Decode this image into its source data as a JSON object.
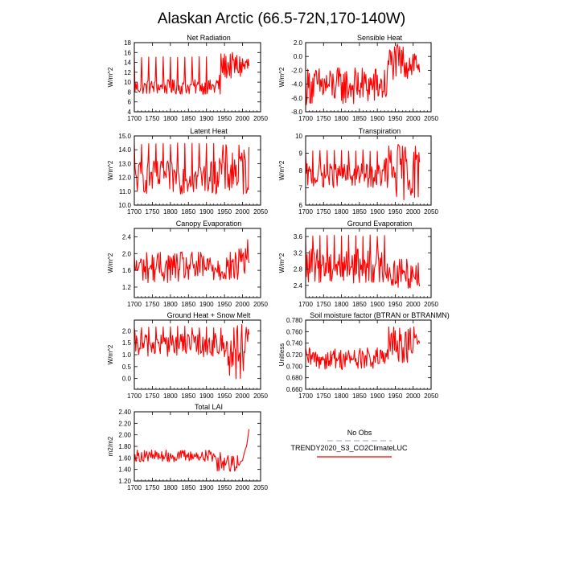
{
  "page": {
    "title": "Alaskan Arctic (66.5-72N,170-140W)"
  },
  "legend": {
    "entries": [
      {
        "label": "No Obs",
        "color": "#b0b0c8",
        "dash": true
      },
      {
        "label": "TRENDY2020_S3_CO2ClimateLUC",
        "color": "#ff0000",
        "dash": false
      }
    ]
  },
  "colors": {
    "series": "#ff0000",
    "frame": "#000000"
  },
  "chart_data": [
    {
      "type": "line",
      "title": "Net Radiation",
      "ylabel": "W/m^2",
      "xlim": [
        1700,
        2050
      ],
      "xticks": [
        1700,
        1750,
        1800,
        1850,
        1900,
        1950,
        2000,
        2050
      ],
      "ylim": [
        4,
        18
      ],
      "yticks": [
        4,
        6,
        8,
        10,
        12,
        14,
        16,
        18
      ],
      "yticklabels": [
        "4",
        "6",
        "8",
        "10",
        "12",
        "14",
        "16",
        "18"
      ],
      "series": [
        {
          "x_start": 1700,
          "x_end": 2020,
          "segments": [
            {
              "x0": 1700,
              "x1": 1920,
              "type": "periodic",
              "period": 20,
              "spikes": true,
              "base": [
                7.5,
                10.5
              ],
              "peak": 15.2,
              "trough": 6.8
            },
            {
              "x0": 1920,
              "x1": 1940,
              "type": "noise",
              "range": [
                6.5,
                12
              ]
            },
            {
              "x0": 1940,
              "x1": 2020,
              "type": "noise",
              "range": [
                10.5,
                16
              ]
            }
          ]
        }
      ]
    },
    {
      "type": "line",
      "title": "Sensible Heat",
      "ylabel": "W/m^2",
      "xlim": [
        1700,
        2050
      ],
      "xticks": [
        1700,
        1750,
        1800,
        1850,
        1900,
        1950,
        2000,
        2050
      ],
      "ylim": [
        -8,
        2
      ],
      "yticks": [
        -8,
        -6,
        -4,
        -2,
        0,
        2
      ],
      "yticklabels": [
        "-8.0",
        "-6.0",
        "-4.0",
        "-2.0",
        "0.0",
        "2.0"
      ],
      "series": [
        {
          "x_start": 1700,
          "x_end": 2020,
          "segments": [
            {
              "x0": 1700,
              "x1": 1930,
              "type": "noise",
              "range": [
                -7.0,
                -1.5
              ]
            },
            {
              "x0": 1930,
              "x1": 2020,
              "type": "noise",
              "range": [
                -3.5,
                1.8
              ]
            }
          ]
        }
      ]
    },
    {
      "type": "line",
      "title": "Latent Heat",
      "ylabel": "W/m^2",
      "xlim": [
        1700,
        2050
      ],
      "xticks": [
        1700,
        1750,
        1800,
        1850,
        1900,
        1950,
        2000,
        2050
      ],
      "ylim": [
        10,
        15
      ],
      "yticks": [
        10,
        11,
        12,
        13,
        14,
        15
      ],
      "yticklabels": [
        "10.0",
        "11.0",
        "12.0",
        "13.0",
        "14.0",
        "15.0"
      ],
      "series": [
        {
          "x_start": 1700,
          "x_end": 2020,
          "segments": [
            {
              "x0": 1700,
              "x1": 1930,
              "type": "periodic",
              "period": 20,
              "spikes": true,
              "base": [
                10.8,
                13.2
              ],
              "peak": 14.5,
              "trough": 10.5
            },
            {
              "x0": 1930,
              "x1": 2020,
              "type": "noise",
              "range": [
                10.6,
                14.4
              ]
            }
          ]
        }
      ]
    },
    {
      "type": "line",
      "title": "Transpiration",
      "ylabel": "W/m^2",
      "xlim": [
        1700,
        2050
      ],
      "xticks": [
        1700,
        1750,
        1800,
        1850,
        1900,
        1950,
        2000,
        2050
      ],
      "ylim": [
        6,
        10
      ],
      "yticks": [
        6,
        7,
        8,
        9,
        10
      ],
      "yticklabels": [
        "6",
        "7",
        "8",
        "9",
        "10"
      ],
      "series": [
        {
          "x_start": 1700,
          "x_end": 2020,
          "segments": [
            {
              "x0": 1700,
              "x1": 1920,
              "type": "periodic",
              "period": 20,
              "spikes": true,
              "base": [
                7.0,
                8.4
              ],
              "peak": 9.2,
              "trough": 6.8
            },
            {
              "x0": 1920,
              "x1": 2020,
              "type": "noise",
              "range": [
                6.3,
                9.6
              ]
            }
          ]
        }
      ]
    },
    {
      "type": "line",
      "title": "Canopy Evaporation",
      "ylabel": "W/m^2",
      "xlim": [
        1700,
        2050
      ],
      "xticks": [
        1700,
        1750,
        1800,
        1850,
        1900,
        1950,
        2000,
        2050
      ],
      "ylim": [
        0.95,
        2.6
      ],
      "yticks": [
        1.2,
        1.6,
        2.0,
        2.4
      ],
      "yticklabels": [
        "1.2",
        "1.6",
        "2.0",
        "2.4"
      ],
      "series": [
        {
          "x_start": 1700,
          "x_end": 2020,
          "segments": [
            {
              "x0": 1700,
              "x1": 1990,
              "type": "noise",
              "range": [
                1.3,
                2.05
              ]
            },
            {
              "x0": 1990,
              "x1": 2020,
              "type": "noise",
              "range": [
                1.4,
                2.4
              ]
            }
          ]
        }
      ]
    },
    {
      "type": "line",
      "title": "Ground Evaporation",
      "ylabel": "W/m^2",
      "xlim": [
        1700,
        2050
      ],
      "xticks": [
        1700,
        1750,
        1800,
        1850,
        1900,
        1950,
        2000,
        2050
      ],
      "ylim": [
        2.1,
        3.8
      ],
      "yticks": [
        2.4,
        2.8,
        3.2,
        3.6
      ],
      "yticklabels": [
        "2.4",
        "2.8",
        "3.2",
        "3.6"
      ],
      "series": [
        {
          "x_start": 1700,
          "x_end": 2020,
          "segments": [
            {
              "x0": 1700,
              "x1": 1930,
              "type": "periodic",
              "period": 20,
              "spikes": true,
              "base": [
                2.45,
                3.3
              ],
              "peak": 3.65,
              "trough": 2.4
            },
            {
              "x0": 1930,
              "x1": 2020,
              "type": "noise",
              "range": [
                2.3,
                3.1
              ]
            }
          ]
        }
      ]
    },
    {
      "type": "line",
      "title": "Ground Heat + Snow Melt",
      "ylabel": "W/m^2",
      "xlim": [
        1700,
        2050
      ],
      "xticks": [
        1700,
        1750,
        1800,
        1850,
        1900,
        1950,
        2000,
        2050
      ],
      "ylim": [
        -0.45,
        2.45
      ],
      "yticks": [
        0,
        0.5,
        1.0,
        1.5,
        2.0
      ],
      "yticklabels": [
        "0.0",
        "0.5",
        "1.0",
        "1.5",
        "2.0"
      ],
      "series": [
        {
          "x_start": 1700,
          "x_end": 2020,
          "segments": [
            {
              "x0": 1700,
              "x1": 1960,
              "type": "periodic",
              "period": 20,
              "spikes": true,
              "base": [
                0.9,
                1.9
              ],
              "peak": 2.2,
              "trough": 0.0
            },
            {
              "x0": 1960,
              "x1": 2020,
              "type": "noise",
              "range": [
                -0.1,
                2.3
              ]
            }
          ]
        }
      ]
    },
    {
      "type": "line",
      "title": "Soil moisture factor (BTRAN or BTRANMN)",
      "ylabel": "Unitless",
      "xlim": [
        1700,
        2050
      ],
      "xticks": [
        1700,
        1750,
        1800,
        1850,
        1900,
        1950,
        2000,
        2050
      ],
      "ylim": [
        0.66,
        0.78
      ],
      "yticks": [
        0.66,
        0.68,
        0.7,
        0.72,
        0.74,
        0.76,
        0.78
      ],
      "yticklabels": [
        "0.660",
        "0.680",
        "0.700",
        "0.720",
        "0.740",
        "0.760",
        "0.780"
      ],
      "series": [
        {
          "x_start": 1700,
          "x_end": 2020,
          "segments": [
            {
              "x0": 1700,
              "x1": 1930,
              "type": "noise",
              "range": [
                0.694,
                0.732
              ]
            },
            {
              "x0": 1930,
              "x1": 2020,
              "type": "noise",
              "range": [
                0.705,
                0.771
              ]
            }
          ]
        }
      ]
    },
    {
      "type": "line",
      "title": "Total LAI",
      "ylabel": "m2/m2",
      "xlim": [
        1700,
        2050
      ],
      "xticks": [
        1700,
        1750,
        1800,
        1850,
        1900,
        1950,
        2000,
        2050
      ],
      "ylim": [
        1.2,
        2.4
      ],
      "yticks": [
        1.2,
        1.4,
        1.6,
        1.8,
        2.0,
        2.2,
        2.4
      ],
      "yticklabels": [
        "1.20",
        "1.40",
        "1.60",
        "1.80",
        "2.00",
        "2.20",
        "2.40"
      ],
      "series": [
        {
          "x_start": 1700,
          "x_end": 2020,
          "segments": [
            {
              "x0": 1700,
              "x1": 1930,
              "type": "noise",
              "range": [
                1.53,
                1.74
              ]
            },
            {
              "x0": 1930,
              "x1": 1990,
              "type": "noise",
              "range": [
                1.36,
                1.7
              ]
            },
            {
              "x0": 1990,
              "x1": 2020,
              "type": "ramp",
              "range": [
                1.5,
                2.22
              ]
            }
          ]
        }
      ]
    }
  ]
}
